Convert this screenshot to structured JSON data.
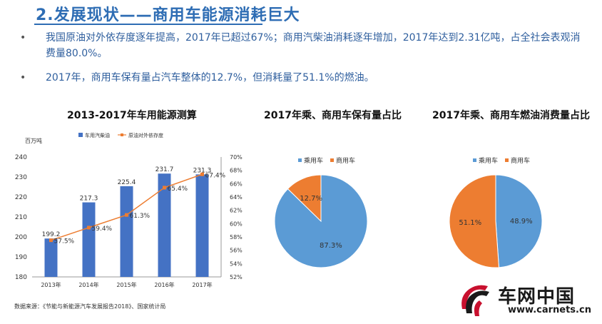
{
  "header": {
    "title": "2.发展现状——商用车能源消耗巨大",
    "bullets": [
      "我国原油对外依存度逐年提高，2017年已超过67%；商用汽柴油消耗逐年增加，2017年达到2.31亿吨，占全社会表观消费量80.0%。",
      "2017年，商用车保有量占汽车整体的12.7%，但消耗量了51.1%的燃油。"
    ],
    "bullet_symbol": "•"
  },
  "colors": {
    "title": "#2e6db4",
    "bar": "#4472c4",
    "line": "#ed7d31",
    "pie_passenger": "#5b9bd5",
    "pie_commercial": "#ed7d31"
  },
  "source": "数据来源：《节能与新能源汽车发展报告2018》、国家统计局",
  "logo": {
    "cn": "车网中国",
    "en": "www.carnets.cn",
    "icon": "carnets-logo-icon"
  },
  "chart_data": [
    {
      "type": "bar",
      "title": "2013-2017年车用能源测算",
      "unit_label": "百万吨",
      "categories": [
        "2013年",
        "2014年",
        "2015年",
        "2016年",
        "2017年"
      ],
      "series": [
        {
          "name": "车用汽柴油",
          "kind": "bar",
          "axis": "left",
          "values": [
            199.2,
            217.3,
            225.4,
            231.7,
            231.3
          ],
          "labels": [
            "199.2",
            "217.3",
            "225.4",
            "231.7",
            "231.3"
          ]
        },
        {
          "name": "原油对外依存度",
          "kind": "line",
          "axis": "right",
          "values": [
            57.5,
            59.4,
            61.3,
            65.4,
            67.4
          ],
          "labels": [
            "57.5%",
            "59.4%",
            "61.3%",
            "65.4%",
            "67.4%"
          ]
        }
      ],
      "ylim": [
        180,
        240
      ],
      "yticks": [
        "180",
        "190",
        "200",
        "210",
        "220",
        "230",
        "240"
      ],
      "y2lim": [
        52,
        70
      ],
      "y2ticks": [
        "52%",
        "54%",
        "56%",
        "58%",
        "60%",
        "62%",
        "64%",
        "66%",
        "68%",
        "70%"
      ],
      "legend": "top"
    },
    {
      "type": "pie",
      "title": "2017年乘、商用车保有量占比",
      "labels": [
        "乘用车",
        "商用车"
      ],
      "values": [
        87.3,
        12.7
      ],
      "value_labels": [
        "87.3%",
        "12.7%"
      ],
      "legend": "top-left"
    },
    {
      "type": "pie",
      "title": "2017年乘、商用车燃油消费量占比",
      "labels": [
        "乘用车",
        "商用车"
      ],
      "values": [
        48.9,
        51.1
      ],
      "value_labels": [
        "48.9%",
        "51.1%"
      ],
      "legend": "top-left"
    }
  ]
}
